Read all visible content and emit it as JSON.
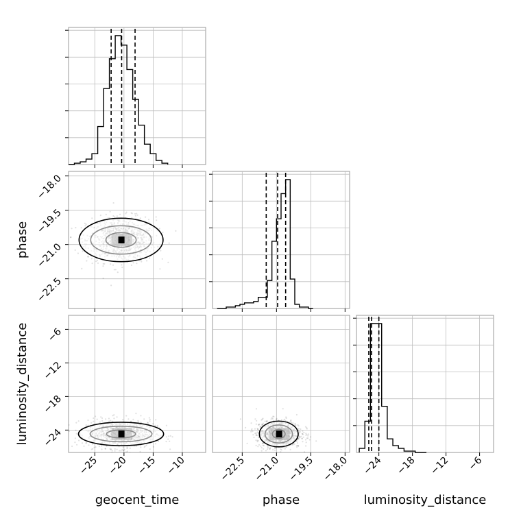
{
  "chart_data": {
    "type": "corner",
    "parameters": [
      {
        "name": "geocent_time",
        "label": "geocent_time",
        "range": [
          -29.5,
          -6.0
        ],
        "ticks": [
          -25,
          -20,
          -15,
          -10
        ],
        "tick_labels": [
          "−25",
          "−20",
          "−15",
          "−10"
        ]
      },
      {
        "name": "phase",
        "label": "phase",
        "range": [
          -23.8,
          -17.8
        ],
        "ticks": [
          -22.5,
          -21.0,
          -19.5,
          -18.0
        ],
        "tick_labels": [
          "−22.5",
          "−21.0",
          "−19.5",
          "−18.0"
        ]
      },
      {
        "name": "luminosity_distance",
        "label": "luminosity_distance",
        "range": [
          -28.0,
          -3.5
        ],
        "ticks": [
          -24,
          -18,
          -12,
          -6
        ],
        "tick_labels": [
          "−24",
          "−18",
          "−12",
          "−6"
        ]
      }
    ],
    "histograms": [
      {
        "param": "geocent_time",
        "quantiles": [
          -22.2,
          -20.4,
          -18.1
        ],
        "bins": [
          -29.5,
          -28.5,
          -27.5,
          -26.5,
          -25.5,
          -24.5,
          -23.5,
          -22.5,
          -21.5,
          -20.5,
          -19.5,
          -18.5,
          -17.5,
          -16.5,
          -15.5,
          -14.5,
          -13.5,
          -12.5
        ],
        "counts": [
          0,
          1,
          2,
          4,
          8,
          28,
          56,
          78,
          95,
          88,
          70,
          48,
          29,
          15,
          8,
          3,
          1
        ]
      },
      {
        "param": "phase",
        "quantiles": [
          -21.45,
          -20.95,
          -20.6
        ],
        "bins": [
          -23.6,
          -23.4,
          -23.2,
          -23.0,
          -22.8,
          -22.6,
          -22.4,
          -22.2,
          -22.0,
          -21.8,
          -21.6,
          -21.4,
          -21.2,
          -21.0,
          -20.8,
          -20.6,
          -20.4,
          -20.2,
          -20.0,
          -19.8,
          -19.6,
          -19.4
        ],
        "counts": [
          0,
          0,
          1,
          1,
          2,
          3,
          4,
          4,
          5,
          8,
          8,
          20,
          48,
          64,
          82,
          92,
          21,
          3,
          1,
          1,
          0
        ]
      },
      {
        "param": "luminosity_distance",
        "quantiles": [
          -25.8,
          -25.3,
          -24.0
        ],
        "bins": [
          -27.5,
          -26.5,
          -25.5,
          -24.5,
          -23.5,
          -22.5,
          -21.5,
          -20.5,
          -19.5,
          -18.5,
          -17.5,
          -16.5,
          -15.5
        ],
        "counts": [
          3,
          23,
          95,
          95,
          34,
          10,
          5,
          3,
          1,
          1,
          0,
          0
        ]
      }
    ],
    "pairs": [
      {
        "x": "geocent_time",
        "y": "phase",
        "center": [
          -20.5,
          -20.8
        ],
        "spread": [
          3.3,
          0.55
        ],
        "levels": [
          [
            2.6,
            0.32
          ],
          [
            5.2,
            0.62
          ],
          [
            7.2,
            0.95
          ]
        ]
      },
      {
        "x": "geocent_time",
        "y": "luminosity_distance",
        "center": [
          -20.5,
          -24.7
        ],
        "spread": [
          3.3,
          1.4
        ],
        "levels": [
          [
            2.5,
            0.7
          ],
          [
            5.3,
            1.4
          ],
          [
            7.3,
            2.1
          ]
        ]
      },
      {
        "x": "phase",
        "y": "luminosity_distance",
        "center": [
          -20.9,
          -24.7
        ],
        "spread": [
          0.55,
          1.4
        ],
        "levels": [
          [
            0.28,
            0.8
          ],
          [
            0.6,
            1.6
          ],
          [
            0.85,
            2.3
          ]
        ]
      }
    ]
  }
}
